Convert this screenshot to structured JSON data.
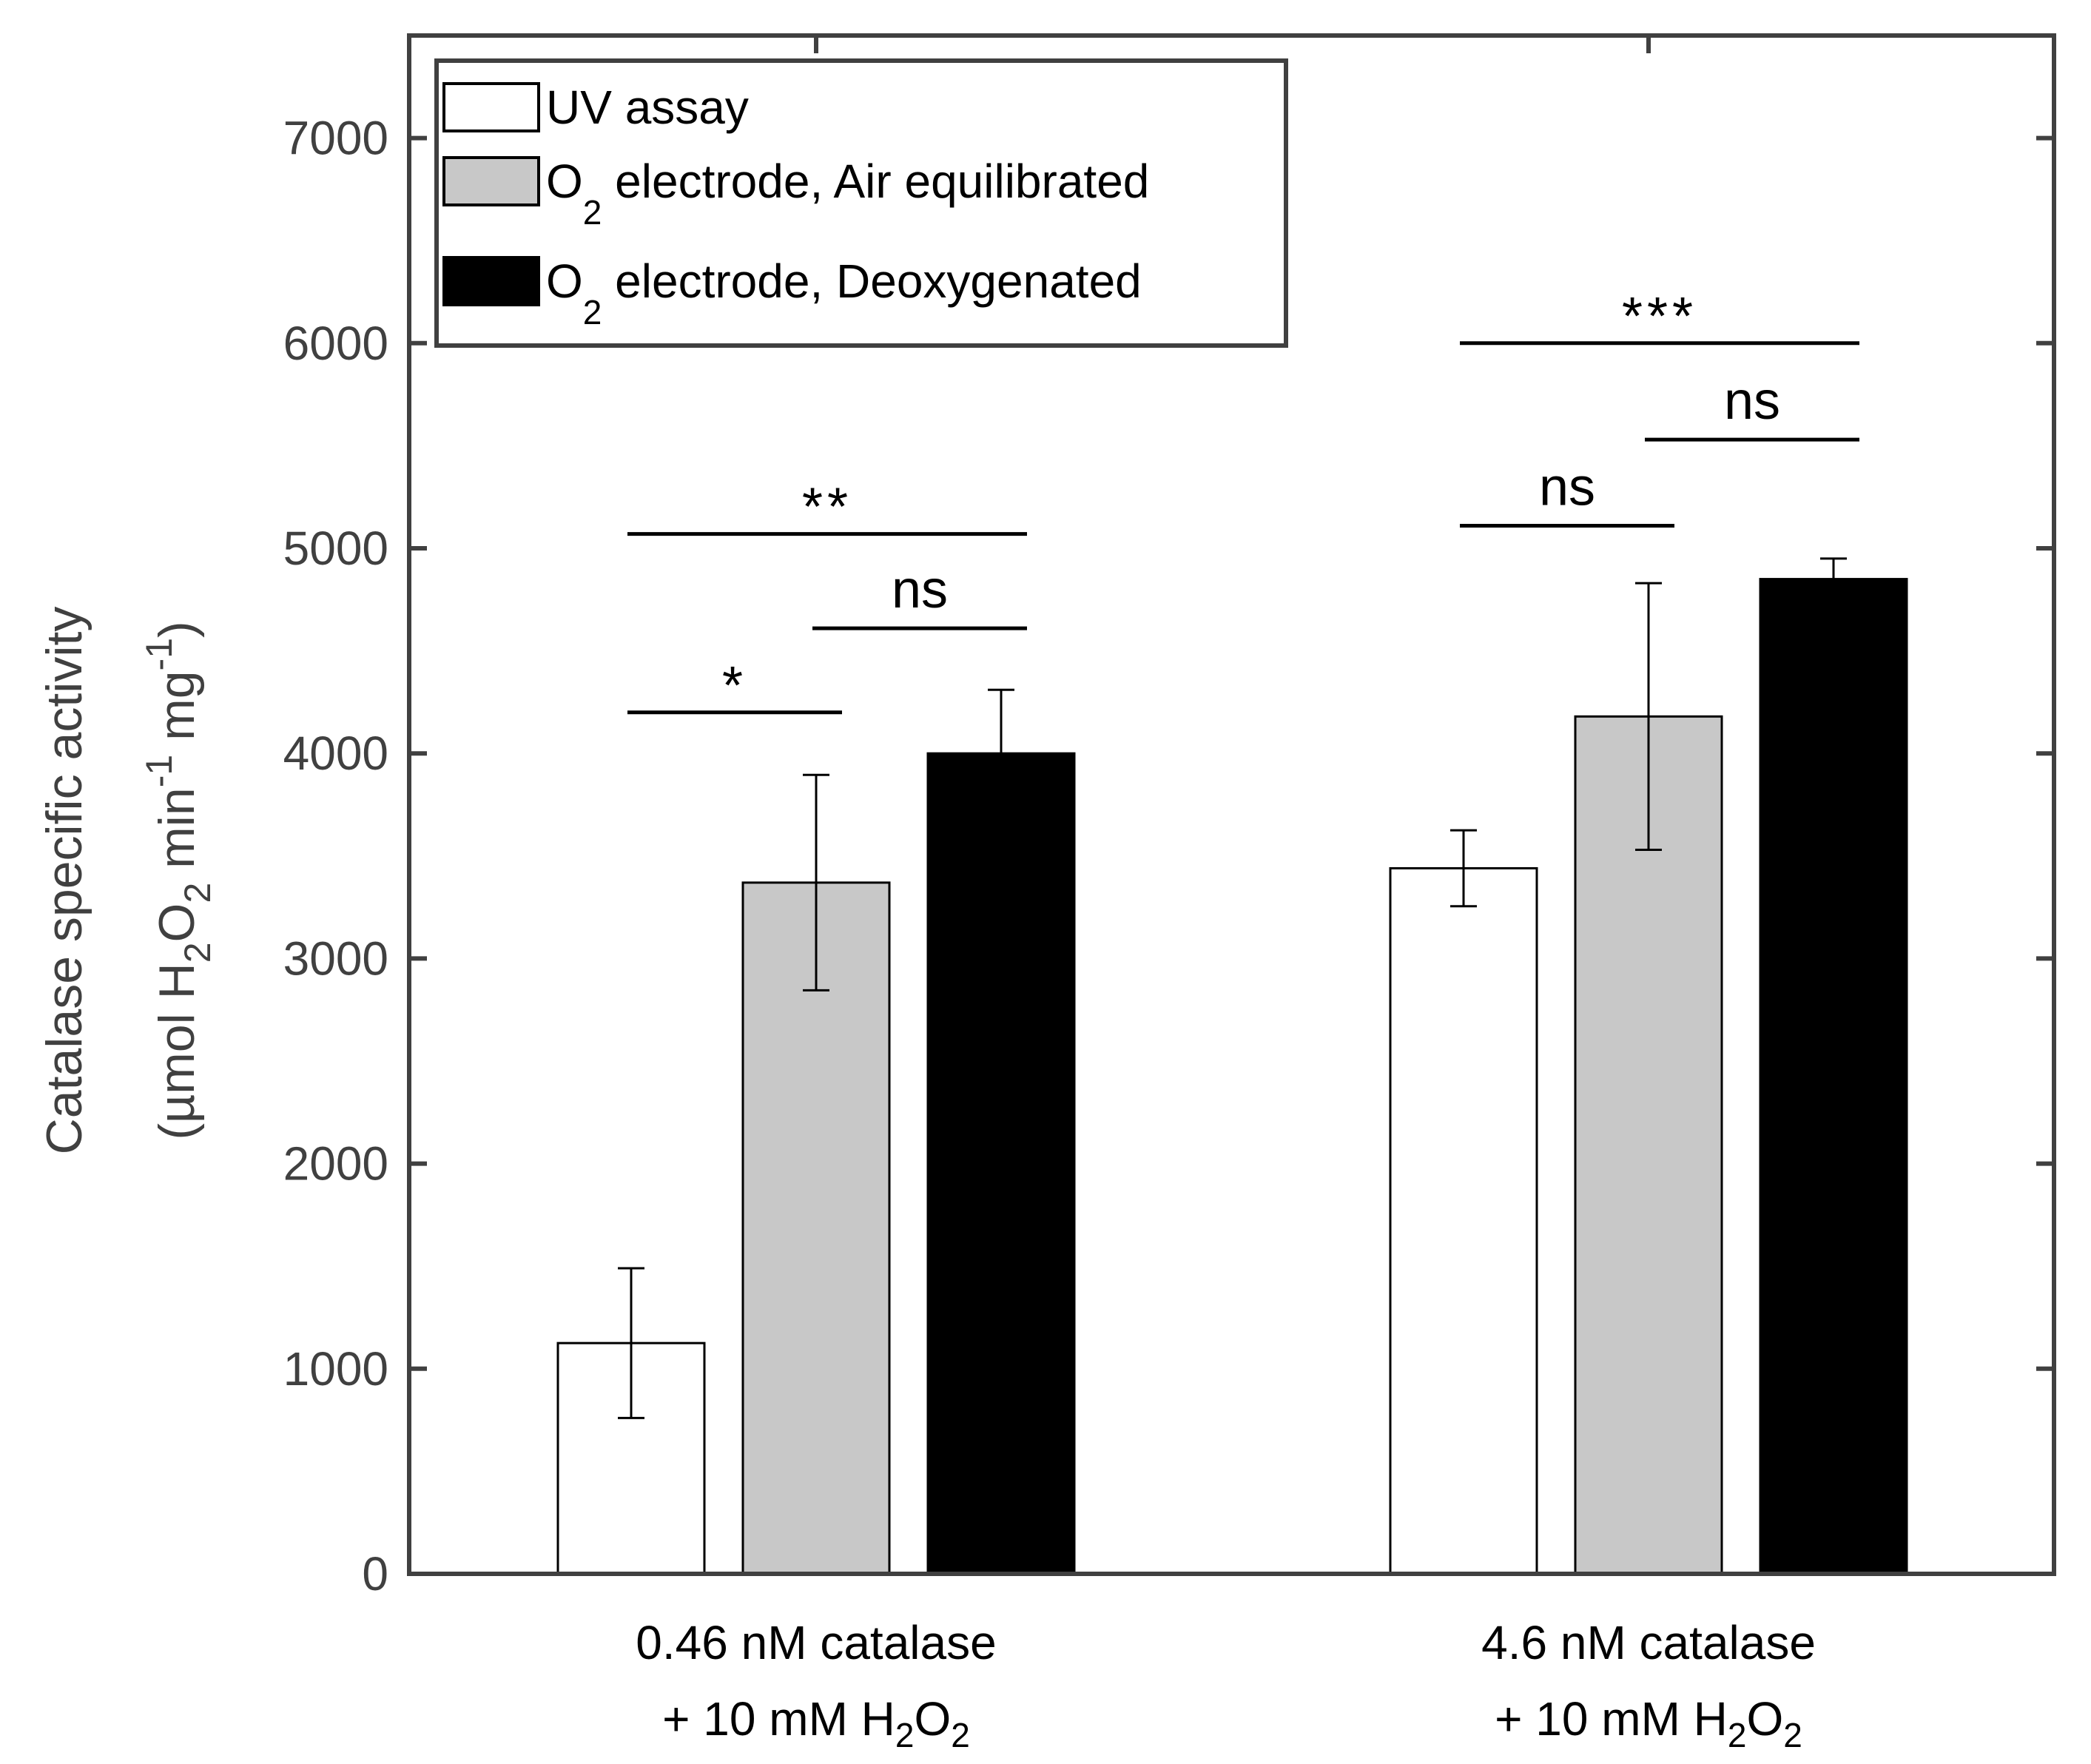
{
  "chart_data": {
    "type": "bar",
    "ylabel": {
      "line1": "Catalase specific activity",
      "line2": {
        "prefix": "(µmol H",
        "s1": "2",
        "mid1": "O",
        "s2": "2",
        "mid2": " min",
        "p1": "-1",
        "mid3": " mg",
        "p2": "-1",
        "suffix": ")"
      }
    },
    "ylim": [
      0,
      7500
    ],
    "yticks": [
      0,
      1000,
      2000,
      3000,
      4000,
      5000,
      6000,
      7000
    ],
    "grid": false,
    "legend_position": "top-left",
    "categories": [
      {
        "line1": "0.46 nM catalase",
        "line2": {
          "prefix": "+ 10 mM H",
          "s1": "2",
          "mid": "O",
          "s2": "2"
        }
      },
      {
        "line1": "4.6 nM catalase",
        "line2": {
          "prefix": "+ 10 mM H",
          "s1": "2",
          "mid": "O",
          "s2": "2"
        }
      }
    ],
    "series": [
      {
        "legend": {
          "main": "UV assay"
        },
        "color": "#ffffff",
        "values": [
          1125,
          3440
        ],
        "errors": [
          365,
          185
        ]
      },
      {
        "legend": {
          "main": "O",
          "sub": "2",
          "rest": " electrode, Air equilibrated"
        },
        "color": "#c8c8c8",
        "values": [
          3370,
          4180
        ],
        "errors": [
          525,
          650
        ]
      },
      {
        "legend": {
          "main": "O",
          "sub": "2",
          "rest": " electrode, Deoxygenated"
        },
        "color": "#000000",
        "values": [
          4000,
          4850
        ],
        "errors": [
          310,
          100
        ]
      }
    ],
    "significance": [
      {
        "label": "*",
        "group": 0,
        "from": 0,
        "to": 1,
        "y": 4200
      },
      {
        "label": "ns",
        "group": 0,
        "from": 1,
        "to": 2,
        "y": 4610
      },
      {
        "label": "**",
        "group": 0,
        "from": 0,
        "to": 2,
        "y": 5070
      },
      {
        "label": "ns",
        "group": 1,
        "from": 0,
        "to": 1,
        "y": 5110
      },
      {
        "label": "ns",
        "group": 1,
        "from": 1,
        "to": 2,
        "y": 5530
      },
      {
        "label": "***",
        "group": 1,
        "from": 0,
        "to": 2,
        "y": 6000
      }
    ]
  }
}
